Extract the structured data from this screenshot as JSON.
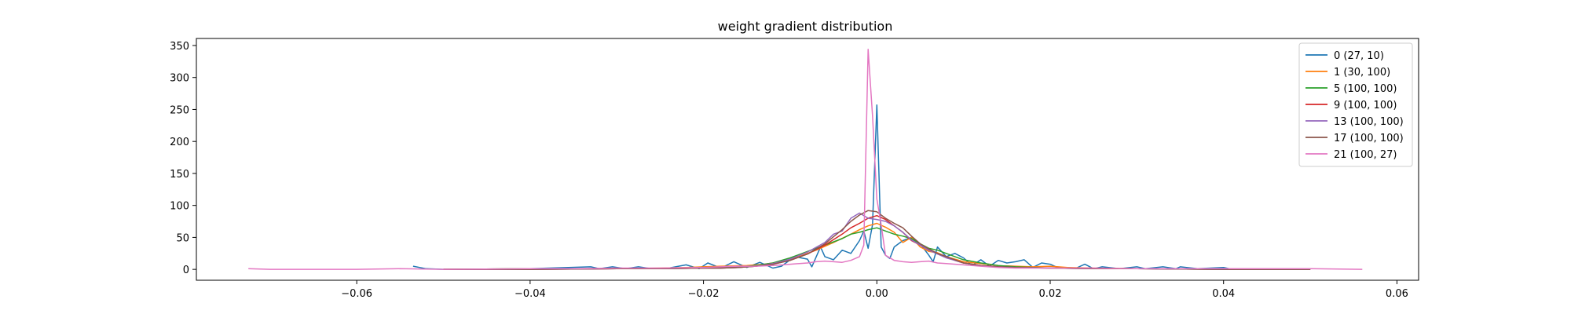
{
  "chart_data": {
    "type": "line",
    "title": "weight gradient distribution",
    "xlabel": "",
    "ylabel": "",
    "xlim": [
      -0.0785,
      0.0625
    ],
    "ylim": [
      -17,
      361
    ],
    "x_ticks": [
      {
        "value": -0.06,
        "label": "−0.06"
      },
      {
        "value": -0.04,
        "label": "−0.04"
      },
      {
        "value": -0.02,
        "label": "−0.02"
      },
      {
        "value": 0.0,
        "label": "0.00"
      },
      {
        "value": 0.02,
        "label": "0.02"
      },
      {
        "value": 0.04,
        "label": "0.04"
      },
      {
        "value": 0.06,
        "label": "0.06"
      }
    ],
    "y_ticks": [
      {
        "value": 0,
        "label": "0"
      },
      {
        "value": 50,
        "label": "50"
      },
      {
        "value": 100,
        "label": "100"
      },
      {
        "value": 150,
        "label": "150"
      },
      {
        "value": 200,
        "label": "200"
      },
      {
        "value": 250,
        "label": "250"
      },
      {
        "value": 300,
        "label": "300"
      },
      {
        "value": 350,
        "label": "350"
      }
    ],
    "grid": false,
    "legend_position": "top-right",
    "series": [
      {
        "name": "0 (27, 10)",
        "color": "#1f77b4",
        "points": [
          [
            -0.0535,
            5
          ],
          [
            -0.052,
            1
          ],
          [
            -0.05,
            0
          ],
          [
            -0.04,
            1
          ],
          [
            -0.033,
            4
          ],
          [
            -0.032,
            1
          ],
          [
            -0.0305,
            4
          ],
          [
            -0.029,
            1
          ],
          [
            -0.0275,
            4
          ],
          [
            -0.026,
            1
          ],
          [
            -0.024,
            2
          ],
          [
            -0.022,
            7
          ],
          [
            -0.0205,
            1
          ],
          [
            -0.0195,
            10
          ],
          [
            -0.018,
            2
          ],
          [
            -0.0165,
            12
          ],
          [
            -0.015,
            3
          ],
          [
            -0.0135,
            11
          ],
          [
            -0.012,
            2
          ],
          [
            -0.011,
            5
          ],
          [
            -0.0095,
            20
          ],
          [
            -0.008,
            16
          ],
          [
            -0.0075,
            4
          ],
          [
            -0.0065,
            35
          ],
          [
            -0.006,
            20
          ],
          [
            -0.005,
            15
          ],
          [
            -0.004,
            30
          ],
          [
            -0.003,
            25
          ],
          [
            -0.002,
            45
          ],
          [
            -0.0015,
            60
          ],
          [
            -0.001,
            33
          ],
          [
            -0.0005,
            70
          ],
          [
            0.0,
            257
          ],
          [
            0.0005,
            35
          ],
          [
            0.001,
            22
          ],
          [
            0.0015,
            17
          ],
          [
            0.002,
            35
          ],
          [
            0.003,
            45
          ],
          [
            0.004,
            50
          ],
          [
            0.005,
            40
          ],
          [
            0.006,
            22
          ],
          [
            0.0065,
            12
          ],
          [
            0.007,
            35
          ],
          [
            0.008,
            20
          ],
          [
            0.009,
            25
          ],
          [
            0.01,
            18
          ],
          [
            0.011,
            6
          ],
          [
            0.012,
            15
          ],
          [
            0.013,
            5
          ],
          [
            0.014,
            14
          ],
          [
            0.015,
            10
          ],
          [
            0.016,
            12
          ],
          [
            0.017,
            15
          ],
          [
            0.018,
            3
          ],
          [
            0.019,
            10
          ],
          [
            0.02,
            8
          ],
          [
            0.021,
            2
          ],
          [
            0.022,
            3
          ],
          [
            0.023,
            2
          ],
          [
            0.024,
            8
          ],
          [
            0.025,
            1
          ],
          [
            0.026,
            4
          ],
          [
            0.028,
            1
          ],
          [
            0.03,
            4
          ],
          [
            0.031,
            1
          ],
          [
            0.033,
            4
          ],
          [
            0.0345,
            1
          ],
          [
            0.035,
            4
          ],
          [
            0.037,
            1
          ],
          [
            0.04,
            3
          ],
          [
            0.041,
            0
          ]
        ]
      },
      {
        "name": "1 (30, 100)",
        "color": "#ff7f0e",
        "points": [
          [
            -0.05,
            0
          ],
          [
            -0.04,
            1
          ],
          [
            -0.03,
            1
          ],
          [
            -0.025,
            2
          ],
          [
            -0.022,
            3
          ],
          [
            -0.02,
            4
          ],
          [
            -0.018,
            5
          ],
          [
            -0.015,
            6
          ],
          [
            -0.013,
            8
          ],
          [
            -0.011,
            12
          ],
          [
            -0.009,
            20
          ],
          [
            -0.007,
            30
          ],
          [
            -0.005,
            42
          ],
          [
            -0.003,
            55
          ],
          [
            -0.002,
            62
          ],
          [
            -0.001,
            68
          ],
          [
            0.0,
            72
          ],
          [
            0.001,
            66
          ],
          [
            0.002,
            58
          ],
          [
            0.003,
            42
          ],
          [
            0.004,
            50
          ],
          [
            0.005,
            35
          ],
          [
            0.006,
            28
          ],
          [
            0.007,
            26
          ],
          [
            0.008,
            20
          ],
          [
            0.009,
            16
          ],
          [
            0.01,
            12
          ],
          [
            0.012,
            9
          ],
          [
            0.014,
            6
          ],
          [
            0.016,
            5
          ],
          [
            0.018,
            4
          ],
          [
            0.02,
            5
          ],
          [
            0.022,
            3
          ],
          [
            0.025,
            2
          ],
          [
            0.03,
            1
          ],
          [
            0.04,
            1
          ],
          [
            0.05,
            0
          ]
        ]
      },
      {
        "name": "5 (100, 100)",
        "color": "#2ca02c",
        "points": [
          [
            -0.05,
            0
          ],
          [
            -0.04,
            1
          ],
          [
            -0.03,
            1
          ],
          [
            -0.025,
            1
          ],
          [
            -0.02,
            2
          ],
          [
            -0.018,
            3
          ],
          [
            -0.016,
            4
          ],
          [
            -0.014,
            6
          ],
          [
            -0.012,
            10
          ],
          [
            -0.01,
            18
          ],
          [
            -0.008,
            28
          ],
          [
            -0.006,
            38
          ],
          [
            -0.004,
            48
          ],
          [
            -0.003,
            55
          ],
          [
            -0.002,
            58
          ],
          [
            -0.001,
            62
          ],
          [
            0.0,
            65
          ],
          [
            0.001,
            60
          ],
          [
            0.002,
            55
          ],
          [
            0.003,
            52
          ],
          [
            0.004,
            48
          ],
          [
            0.005,
            40
          ],
          [
            0.006,
            33
          ],
          [
            0.007,
            30
          ],
          [
            0.008,
            25
          ],
          [
            0.009,
            20
          ],
          [
            0.01,
            15
          ],
          [
            0.012,
            10
          ],
          [
            0.014,
            6
          ],
          [
            0.016,
            4
          ],
          [
            0.018,
            3
          ],
          [
            0.02,
            2
          ],
          [
            0.025,
            1
          ],
          [
            0.03,
            1
          ],
          [
            0.04,
            0
          ],
          [
            0.05,
            0
          ]
        ]
      },
      {
        "name": "9 (100, 100)",
        "color": "#d62728",
        "points": [
          [
            -0.05,
            0
          ],
          [
            -0.04,
            0
          ],
          [
            -0.03,
            1
          ],
          [
            -0.025,
            1
          ],
          [
            -0.02,
            2
          ],
          [
            -0.018,
            2
          ],
          [
            -0.016,
            3
          ],
          [
            -0.014,
            5
          ],
          [
            -0.012,
            8
          ],
          [
            -0.01,
            14
          ],
          [
            -0.008,
            24
          ],
          [
            -0.006,
            38
          ],
          [
            -0.004,
            55
          ],
          [
            -0.003,
            65
          ],
          [
            -0.002,
            72
          ],
          [
            -0.001,
            80
          ],
          [
            0.0,
            84
          ],
          [
            0.001,
            78
          ],
          [
            0.002,
            68
          ],
          [
            0.003,
            58
          ],
          [
            0.004,
            45
          ],
          [
            0.005,
            38
          ],
          [
            0.006,
            30
          ],
          [
            0.007,
            25
          ],
          [
            0.008,
            20
          ],
          [
            0.009,
            14
          ],
          [
            0.01,
            10
          ],
          [
            0.012,
            6
          ],
          [
            0.014,
            4
          ],
          [
            0.016,
            3
          ],
          [
            0.02,
            2
          ],
          [
            0.025,
            1
          ],
          [
            0.03,
            1
          ],
          [
            0.04,
            0
          ],
          [
            0.05,
            0
          ]
        ]
      },
      {
        "name": "13 (100, 100)",
        "color": "#9467bd",
        "points": [
          [
            -0.05,
            0
          ],
          [
            -0.04,
            0
          ],
          [
            -0.03,
            1
          ],
          [
            -0.025,
            1
          ],
          [
            -0.02,
            2
          ],
          [
            -0.018,
            2
          ],
          [
            -0.016,
            3
          ],
          [
            -0.014,
            5
          ],
          [
            -0.012,
            9
          ],
          [
            -0.01,
            16
          ],
          [
            -0.008,
            27
          ],
          [
            -0.006,
            42
          ],
          [
            -0.005,
            55
          ],
          [
            -0.004,
            60
          ],
          [
            -0.003,
            80
          ],
          [
            -0.002,
            88
          ],
          [
            -0.001,
            80
          ],
          [
            0.0,
            78
          ],
          [
            0.001,
            75
          ],
          [
            0.002,
            68
          ],
          [
            0.003,
            58
          ],
          [
            0.004,
            46
          ],
          [
            0.005,
            38
          ],
          [
            0.006,
            30
          ],
          [
            0.007,
            24
          ],
          [
            0.008,
            18
          ],
          [
            0.009,
            14
          ],
          [
            0.01,
            10
          ],
          [
            0.012,
            6
          ],
          [
            0.014,
            4
          ],
          [
            0.016,
            3
          ],
          [
            0.02,
            2
          ],
          [
            0.025,
            1
          ],
          [
            0.03,
            1
          ],
          [
            0.04,
            0
          ],
          [
            0.05,
            0
          ]
        ]
      },
      {
        "name": "17 (100, 100)",
        "color": "#8c564b",
        "points": [
          [
            -0.05,
            0
          ],
          [
            -0.04,
            0
          ],
          [
            -0.03,
            1
          ],
          [
            -0.025,
            1
          ],
          [
            -0.02,
            2
          ],
          [
            -0.018,
            2
          ],
          [
            -0.016,
            3
          ],
          [
            -0.014,
            5
          ],
          [
            -0.012,
            8
          ],
          [
            -0.01,
            14
          ],
          [
            -0.008,
            24
          ],
          [
            -0.006,
            40
          ],
          [
            -0.004,
            62
          ],
          [
            -0.003,
            75
          ],
          [
            -0.002,
            85
          ],
          [
            -0.001,
            92
          ],
          [
            0.0,
            90
          ],
          [
            0.001,
            80
          ],
          [
            0.002,
            72
          ],
          [
            0.003,
            65
          ],
          [
            0.004,
            52
          ],
          [
            0.005,
            40
          ],
          [
            0.006,
            32
          ],
          [
            0.007,
            25
          ],
          [
            0.008,
            20
          ],
          [
            0.009,
            15
          ],
          [
            0.01,
            10
          ],
          [
            0.012,
            6
          ],
          [
            0.014,
            4
          ],
          [
            0.016,
            3
          ],
          [
            0.02,
            2
          ],
          [
            0.025,
            1
          ],
          [
            0.03,
            1
          ],
          [
            0.04,
            0
          ],
          [
            0.05,
            0
          ]
        ]
      },
      {
        "name": "21 (100, 27)",
        "color": "#e377c2",
        "points": [
          [
            -0.0725,
            1
          ],
          [
            -0.07,
            0
          ],
          [
            -0.06,
            0
          ],
          [
            -0.055,
            1
          ],
          [
            -0.05,
            0
          ],
          [
            -0.04,
            1
          ],
          [
            -0.035,
            1
          ],
          [
            -0.03,
            2
          ],
          [
            -0.025,
            2
          ],
          [
            -0.02,
            3
          ],
          [
            -0.018,
            4
          ],
          [
            -0.016,
            5
          ],
          [
            -0.014,
            5
          ],
          [
            -0.012,
            6
          ],
          [
            -0.01,
            8
          ],
          [
            -0.008,
            10
          ],
          [
            -0.007,
            12
          ],
          [
            -0.006,
            13
          ],
          [
            -0.005,
            12
          ],
          [
            -0.004,
            11
          ],
          [
            -0.003,
            14
          ],
          [
            -0.002,
            20
          ],
          [
            -0.0015,
            38
          ],
          [
            -0.001,
            344
          ],
          [
            -0.0005,
            240
          ],
          [
            0.0,
            110
          ],
          [
            0.0005,
            70
          ],
          [
            0.001,
            22
          ],
          [
            0.002,
            14
          ],
          [
            0.003,
            12
          ],
          [
            0.004,
            11
          ],
          [
            0.005,
            12
          ],
          [
            0.006,
            13
          ],
          [
            0.007,
            10
          ],
          [
            0.008,
            9
          ],
          [
            0.01,
            7
          ],
          [
            0.012,
            5
          ],
          [
            0.014,
            3
          ],
          [
            0.016,
            2
          ],
          [
            0.02,
            2
          ],
          [
            0.025,
            2
          ],
          [
            0.03,
            1
          ],
          [
            0.04,
            1
          ],
          [
            0.05,
            1
          ],
          [
            0.056,
            0
          ]
        ]
      }
    ]
  }
}
